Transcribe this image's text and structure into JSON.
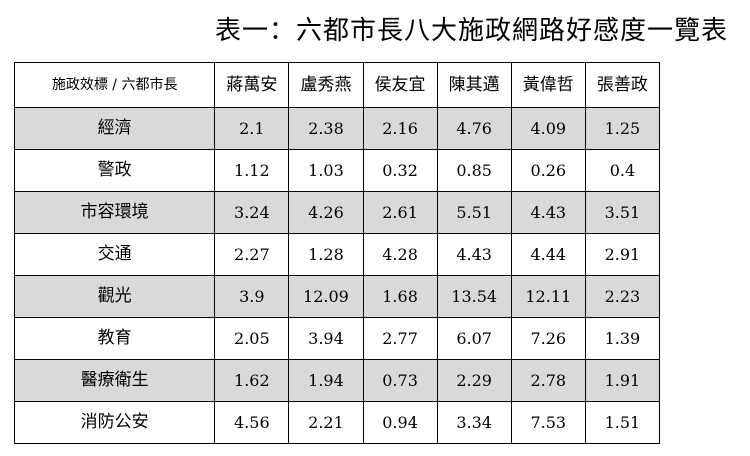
{
  "title": "表一：六都市長八大施政網路好感度一覽表",
  "table": {
    "corner_header": "施政效標 / 六都市長",
    "mayors": [
      "蔣萬安",
      "盧秀燕",
      "侯友宜",
      "陳其邁",
      "黃偉哲",
      "張善政"
    ],
    "rows": [
      {
        "label": "經濟",
        "values": [
          "2.1",
          "2.38",
          "2.16",
          "4.76",
          "4.09",
          "1.25"
        ],
        "shaded": true
      },
      {
        "label": "警政",
        "values": [
          "1.12",
          "1.03",
          "0.32",
          "0.85",
          "0.26",
          "0.4"
        ],
        "shaded": false
      },
      {
        "label": "市容環境",
        "values": [
          "3.24",
          "4.26",
          "2.61",
          "5.51",
          "4.43",
          "3.51"
        ],
        "shaded": true
      },
      {
        "label": "交通",
        "values": [
          "2.27",
          "1.28",
          "4.28",
          "4.43",
          "4.44",
          "2.91"
        ],
        "shaded": false
      },
      {
        "label": "觀光",
        "values": [
          "3.9",
          "12.09",
          "1.68",
          "13.54",
          "12.11",
          "2.23"
        ],
        "shaded": true
      },
      {
        "label": "教育",
        "values": [
          "2.05",
          "3.94",
          "2.77",
          "6.07",
          "7.26",
          "1.39"
        ],
        "shaded": false
      },
      {
        "label": "醫療衛生",
        "values": [
          "1.62",
          "1.94",
          "0.73",
          "2.29",
          "2.78",
          "1.91"
        ],
        "shaded": true
      },
      {
        "label": "消防公安",
        "values": [
          "4.56",
          "2.21",
          "0.94",
          "3.34",
          "7.53",
          "1.51"
        ],
        "shaded": false
      }
    ]
  },
  "colors": {
    "shaded_row": "#d9d9d9",
    "border": "#000000"
  }
}
